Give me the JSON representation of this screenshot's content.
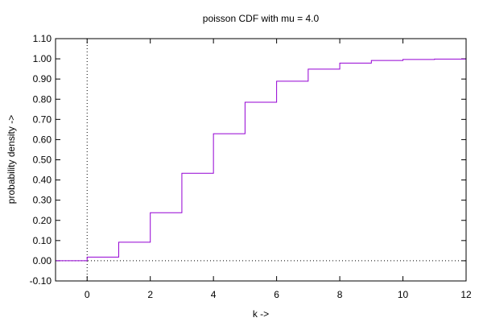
{
  "chart_data": {
    "type": "line",
    "style": "step",
    "title": "poisson CDF with mu = 4.0",
    "xlabel": "k ->",
    "ylabel": "probability density ->",
    "xlim": [
      -1,
      12
    ],
    "ylim": [
      -0.1,
      1.1
    ],
    "x_ticks": [
      0,
      2,
      4,
      6,
      8,
      10,
      12
    ],
    "x_tick_labels": [
      "0",
      "2",
      "4",
      "6",
      "8",
      "10",
      "12"
    ],
    "y_ticks": [
      -0.1,
      0.0,
      0.1,
      0.2,
      0.3,
      0.4,
      0.5,
      0.6,
      0.7,
      0.8,
      0.9,
      1.0,
      1.1
    ],
    "y_tick_labels": [
      "-0.10",
      "0.00",
      "0.10",
      "0.20",
      "0.30",
      "0.40",
      "0.50",
      "0.60",
      "0.70",
      "0.80",
      "0.90",
      "1.00",
      "1.10"
    ],
    "grid": false,
    "zero_axes": "dotted",
    "series": [
      {
        "color": "#9400d3",
        "x": [
          -1,
          0,
          1,
          2,
          3,
          4,
          5,
          6,
          7,
          8,
          9,
          10,
          11
        ],
        "values": [
          0.0,
          0.018,
          0.092,
          0.238,
          0.433,
          0.629,
          0.785,
          0.889,
          0.949,
          0.979,
          0.992,
          0.997,
          0.999
        ]
      }
    ]
  }
}
